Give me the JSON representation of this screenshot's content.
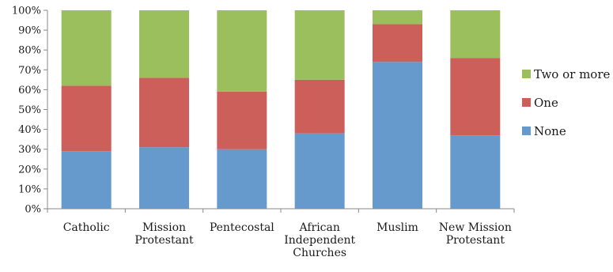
{
  "chart_data": {
    "type": "bar",
    "stacked": true,
    "categories": [
      [
        "Catholic"
      ],
      [
        "Mission",
        "Protestant"
      ],
      [
        "Pentecostal"
      ],
      [
        "African",
        "Independent",
        "Churches"
      ],
      [
        "Muslim"
      ],
      [
        "New Mission",
        "Protestant"
      ]
    ],
    "series": [
      {
        "name": "None",
        "color": "#6699cc",
        "values": [
          29,
          31,
          30,
          38,
          74,
          37
        ]
      },
      {
        "name": "One",
        "color": "#cc5f5a",
        "values": [
          33,
          35,
          29,
          27,
          19,
          39
        ]
      },
      {
        "name": "Two or more",
        "color": "#9cbf5e",
        "values": [
          38,
          34,
          41,
          35,
          7,
          24
        ]
      }
    ],
    "ylim": [
      0,
      100
    ],
    "yticks": [
      "0%",
      "10%",
      "20%",
      "30%",
      "40%",
      "50%",
      "60%",
      "70%",
      "80%",
      "90%",
      "100%"
    ],
    "grid": false,
    "legend": "right",
    "legend_order": [
      "Two or more",
      "One",
      "None"
    ],
    "xlabel": "",
    "ylabel": "",
    "title": ""
  }
}
